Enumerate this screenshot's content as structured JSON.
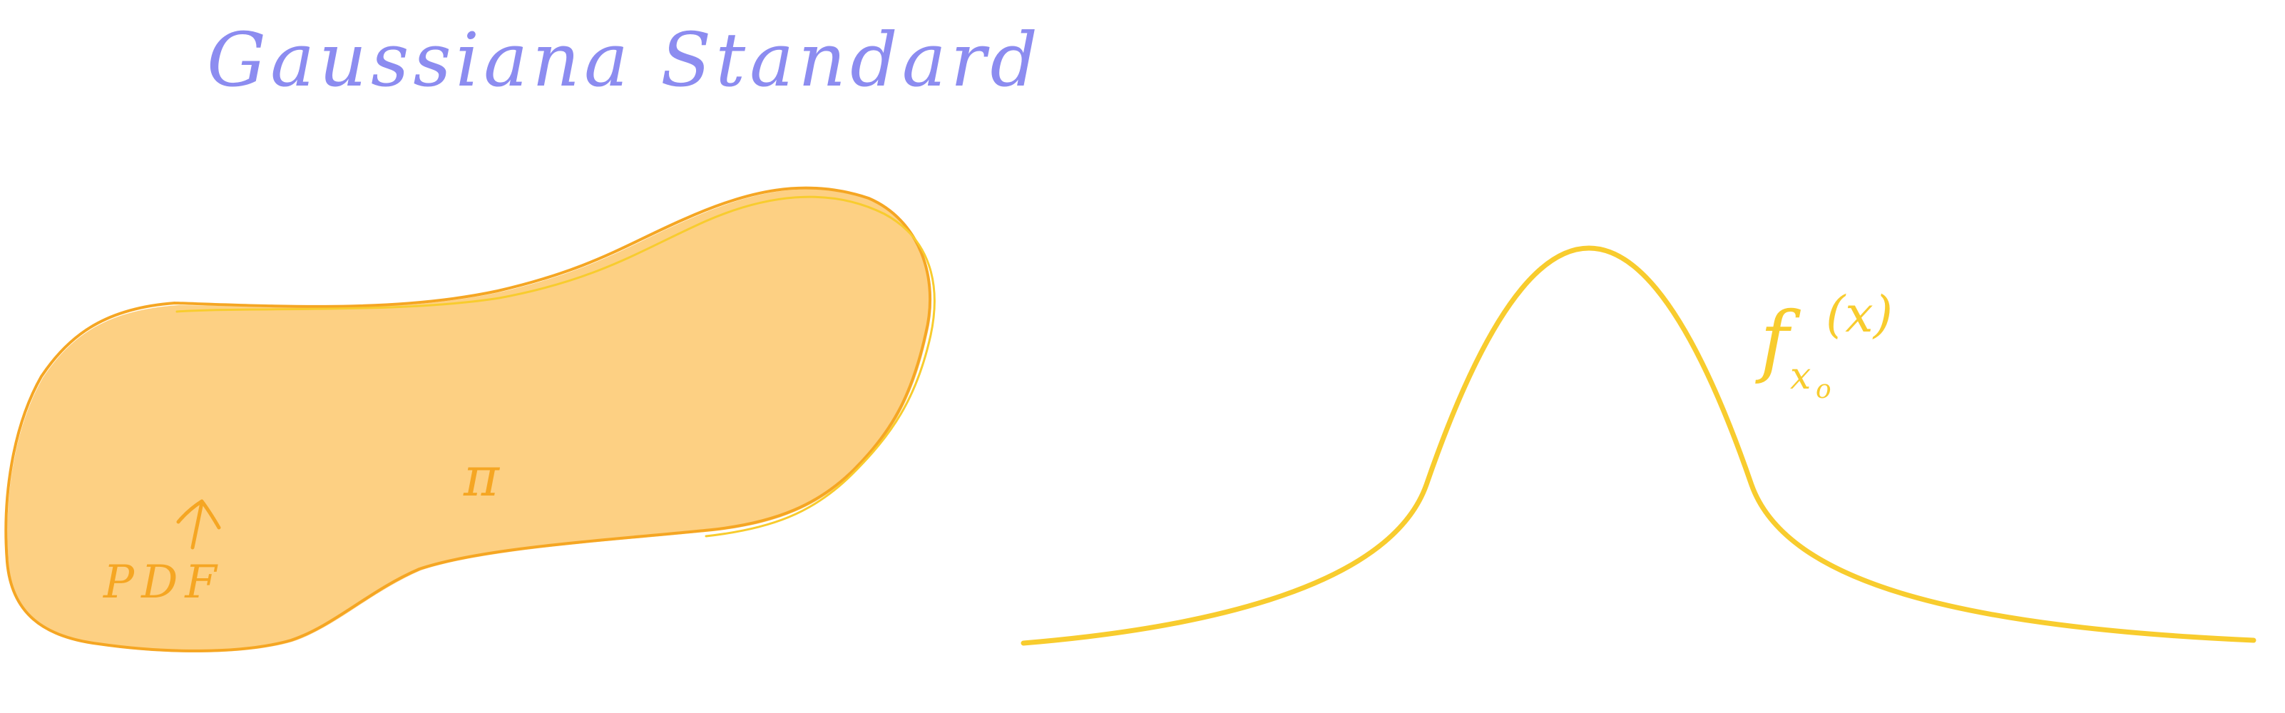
{
  "title": "Gaussiana Standard",
  "blob": {
    "pdf_label": "PDF",
    "pi_label": "π"
  },
  "curve": {
    "label_main": "f",
    "label_sub": "x",
    "label_sub2": "o",
    "label_arg": "(x)"
  },
  "colors": {
    "title": "#8c8cf0",
    "blob_fill": "#fdd083",
    "blob_stroke": "#f5a623",
    "blob_text": "#f5a623",
    "curve": "#f8cc2e"
  }
}
